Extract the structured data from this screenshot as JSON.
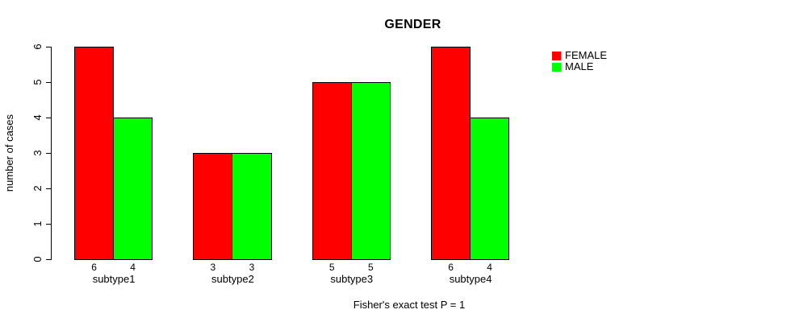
{
  "chart_data": {
    "type": "bar",
    "title": "GENDER",
    "categories": [
      "subtype1",
      "subtype2",
      "subtype3",
      "subtype4"
    ],
    "series": [
      {
        "name": "FEMALE",
        "color": "#FF0000",
        "values": [
          6,
          3,
          5,
          6
        ]
      },
      {
        "name": "MALE",
        "color": "#00FF00",
        "values": [
          4,
          3,
          5,
          4
        ]
      }
    ],
    "xlabel": "",
    "ylabel": "number of cases",
    "ylim": [
      0,
      6
    ],
    "yticks": [
      0,
      1,
      2,
      3,
      4,
      5,
      6
    ],
    "grid": false,
    "bar_value_labels_shown": true,
    "legend_position": "top-right",
    "annotation": "Fisher's exact test P = 1"
  }
}
